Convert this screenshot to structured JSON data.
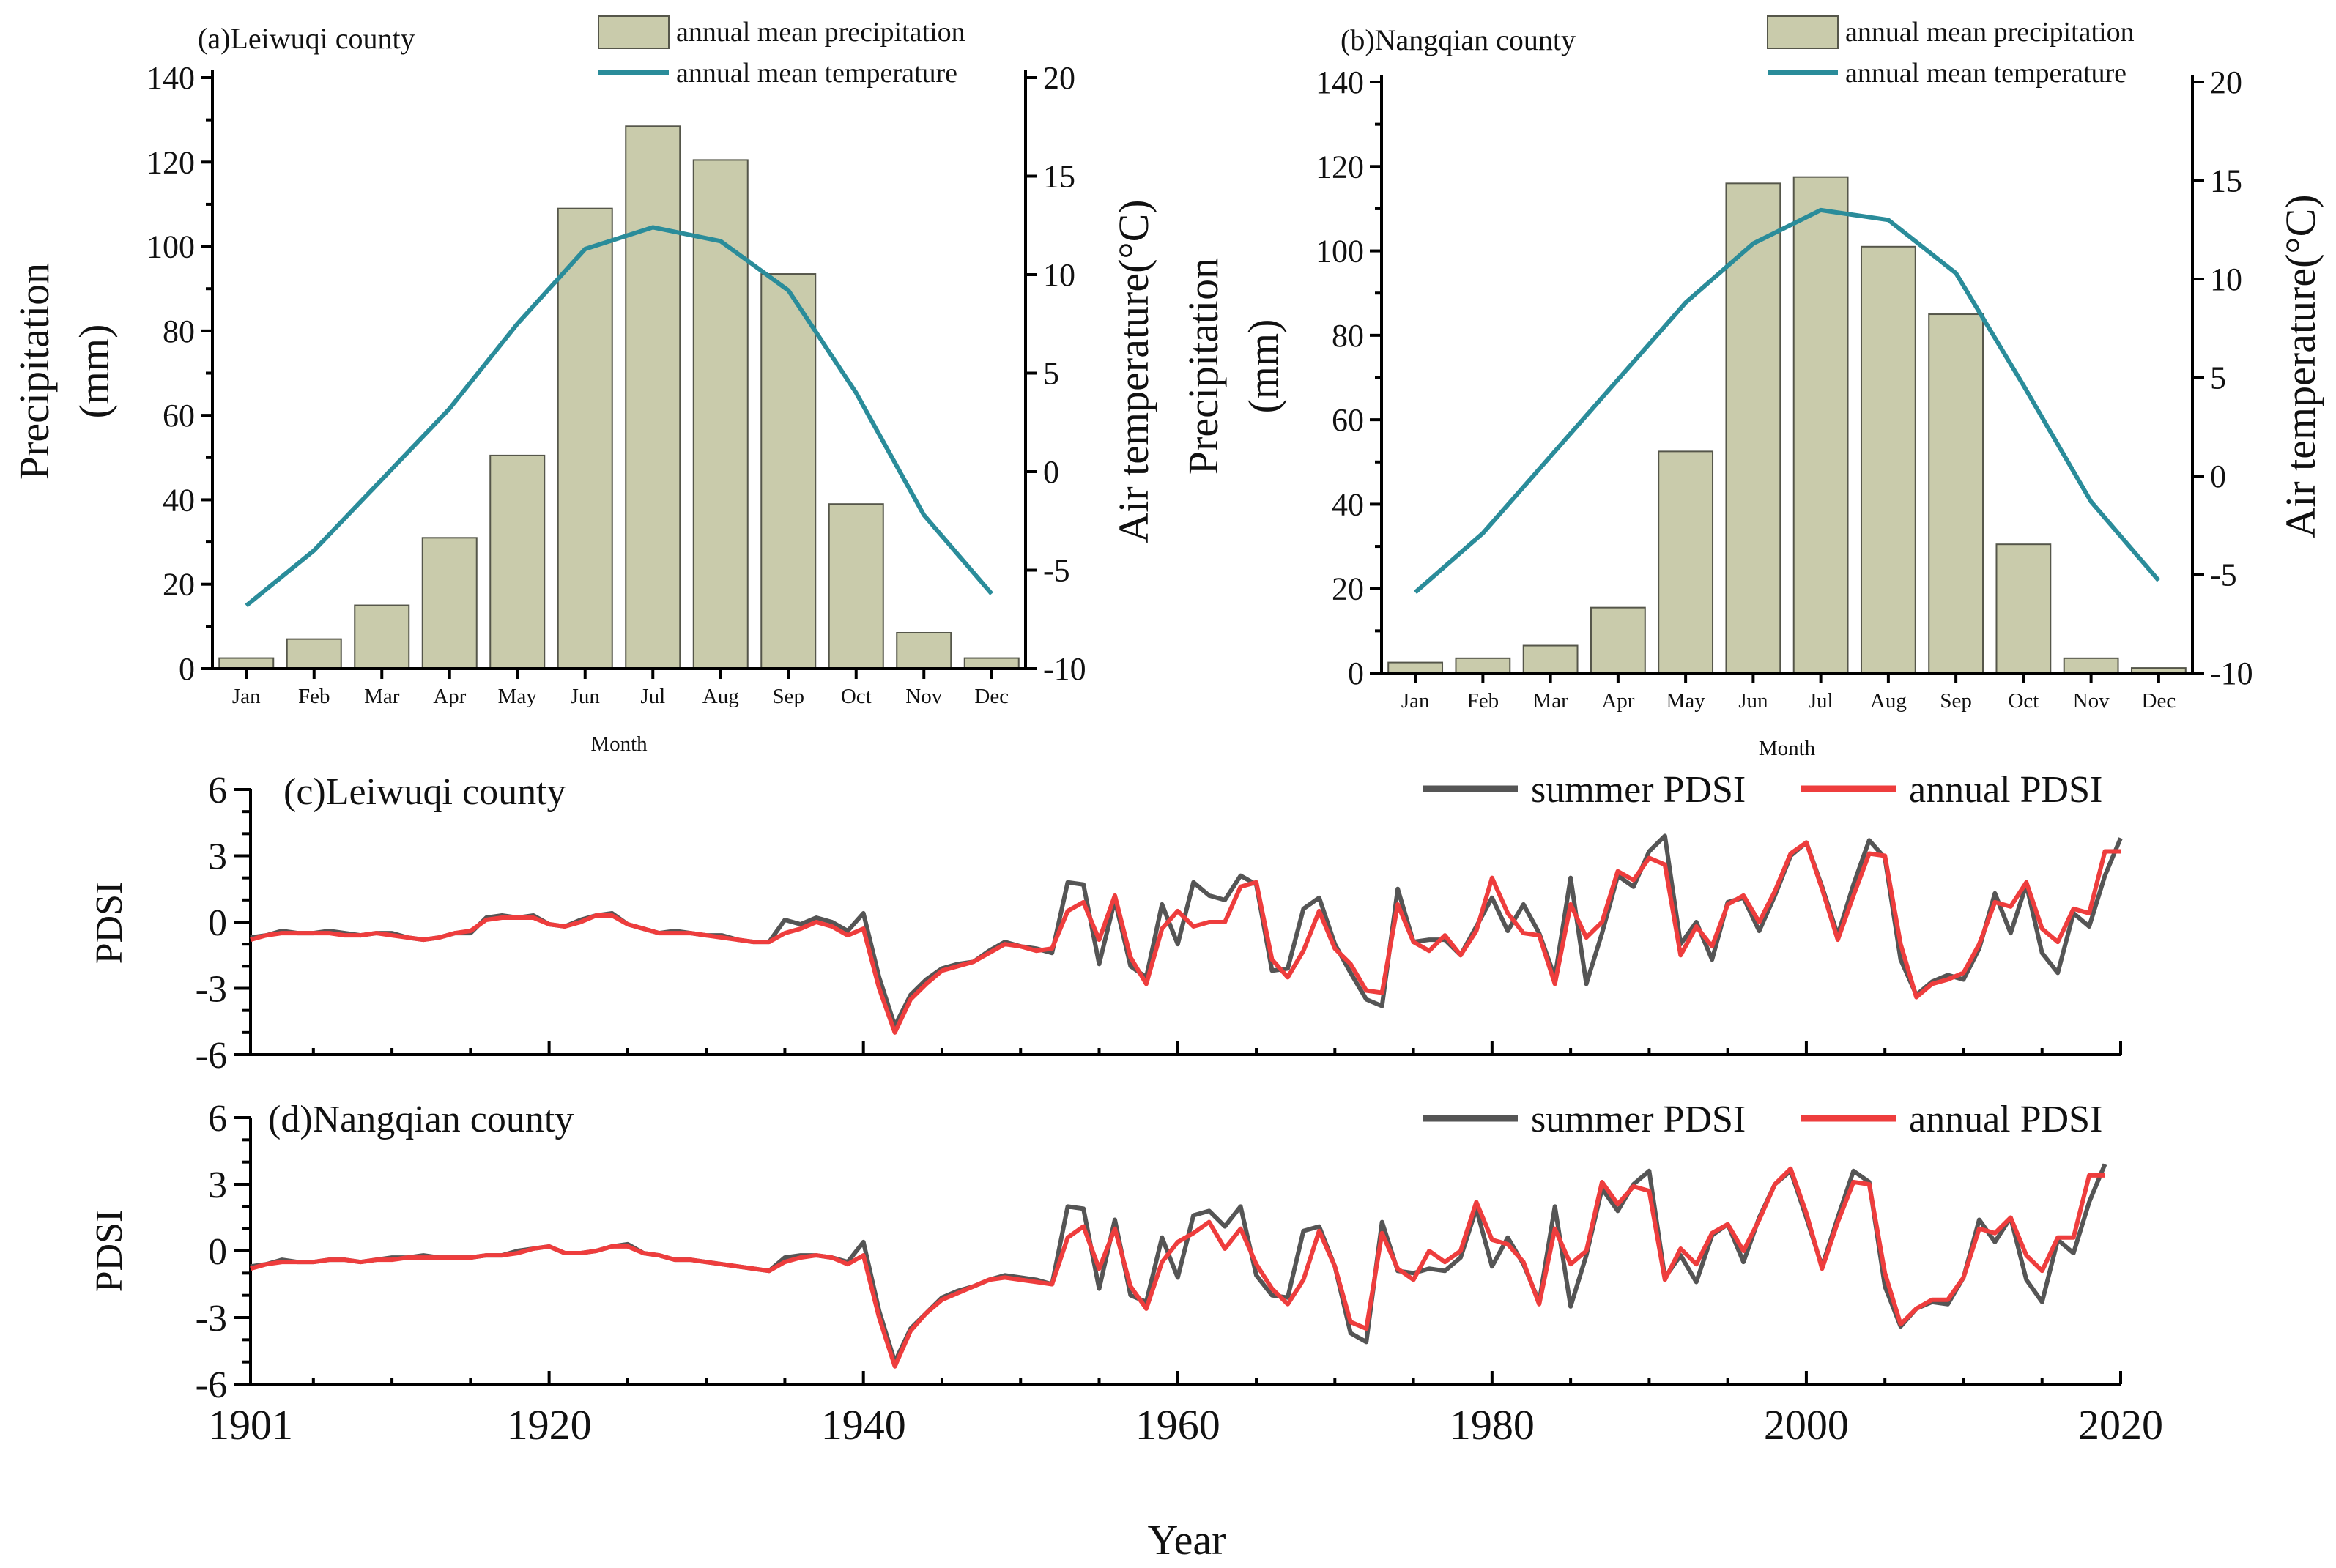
{
  "colors": {
    "bar_fill": "#c9cbab",
    "bar_stroke": "#55564a",
    "temp_line": "#2a8c9a",
    "summer_pdsi": "#555555",
    "annual_pdsi": "#ee3d3d"
  },
  "chart_data": [
    {
      "id": "a",
      "type": "bar+line",
      "title": "(a)Leiwuqi county",
      "xlabel": "Month",
      "ylabel": "Precipitation\n(mm)",
      "ylabel_lines": [
        "Precipitation",
        "(mm)"
      ],
      "y2label": "Air temperature(°C)",
      "categories": [
        "Jan",
        "Feb",
        "Mar",
        "Apr",
        "May",
        "Jun",
        "Jul",
        "Aug",
        "Sep",
        "Oct",
        "Nov",
        "Dec"
      ],
      "ylim": [
        0,
        140
      ],
      "yticks": [
        0,
        20,
        40,
        60,
        80,
        100,
        120,
        140
      ],
      "y2lim": [
        -10,
        20
      ],
      "y2ticks": [
        -10,
        -5,
        0,
        5,
        10,
        15,
        20
      ],
      "legend": [
        "annual mean precipitation",
        "annual mean temperature"
      ],
      "series": [
        {
          "name": "annual mean precipitation",
          "type": "bar",
          "axis": "left",
          "values": [
            2.5,
            7,
            15,
            31,
            50.5,
            109,
            128.5,
            120.5,
            93.5,
            39,
            8.5,
            2.5
          ]
        },
        {
          "name": "annual mean temperature",
          "type": "line",
          "axis": "right",
          "values": [
            -6.8,
            -4.0,
            -0.4,
            3.2,
            7.5,
            11.3,
            12.4,
            11.7,
            9.2,
            4.0,
            -2.2,
            -6.2
          ]
        }
      ]
    },
    {
      "id": "b",
      "type": "bar+line",
      "title": "(b)Nangqian county",
      "xlabel": "Month",
      "ylabel": "Precipitation\n(mm)",
      "ylabel_lines": [
        "Precipitation",
        "(mm)"
      ],
      "y2label": "Air temperature(°C)",
      "categories": [
        "Jan",
        "Feb",
        "Mar",
        "Apr",
        "May",
        "Jun",
        "Jul",
        "Aug",
        "Sep",
        "Oct",
        "Nov",
        "Dec"
      ],
      "ylim": [
        0,
        140
      ],
      "yticks": [
        0,
        20,
        40,
        60,
        80,
        100,
        120,
        140
      ],
      "y2lim": [
        -10,
        20
      ],
      "y2ticks": [
        -10,
        -5,
        0,
        5,
        10,
        15,
        20
      ],
      "legend": [
        "annual mean precipitation",
        "annual mean temperature"
      ],
      "series": [
        {
          "name": "annual mean precipitation",
          "type": "bar",
          "axis": "left",
          "values": [
            2.5,
            3.5,
            6.5,
            15.5,
            52.5,
            116,
            117.5,
            101,
            85,
            30.5,
            3.5,
            1.2
          ]
        },
        {
          "name": "annual mean temperature",
          "type": "line",
          "axis": "right",
          "values": [
            -5.9,
            -2.9,
            1.0,
            4.9,
            8.8,
            11.8,
            13.5,
            13.0,
            10.3,
            4.6,
            -1.3,
            -5.3
          ]
        }
      ]
    },
    {
      "id": "c",
      "type": "line",
      "title": "(c)Leiwuqi county",
      "ylabel": "PDSI",
      "xlabel": "Year",
      "xlim": [
        1901,
        2020
      ],
      "xticks": [
        1901,
        1920,
        1940,
        1960,
        1980,
        2000,
        2020
      ],
      "ylim": [
        -6,
        6
      ],
      "yticks": [
        -6,
        -3,
        0,
        3,
        6
      ],
      "legend": [
        "summer PDSI",
        "annual PDSI"
      ],
      "x_start": 1901,
      "series": [
        {
          "name": "summer PDSI",
          "values": [
            -0.7,
            -0.6,
            -0.4,
            -0.5,
            -0.5,
            -0.4,
            -0.5,
            -0.6,
            -0.5,
            -0.5,
            -0.7,
            -0.8,
            -0.7,
            -0.5,
            -0.5,
            0.2,
            0.3,
            0.2,
            0.3,
            -0.1,
            -0.2,
            0.1,
            0.3,
            0.4,
            -0.1,
            -0.3,
            -0.5,
            -0.4,
            -0.5,
            -0.6,
            -0.6,
            -0.8,
            -0.9,
            -0.9,
            0.1,
            -0.1,
            0.2,
            0.0,
            -0.4,
            0.4,
            -2.5,
            -4.7,
            -3.3,
            -2.6,
            -2.1,
            -1.9,
            -1.8,
            -1.3,
            -0.9,
            -1.1,
            -1.2,
            -1.4,
            1.8,
            1.7,
            -1.9,
            1.0,
            -2.0,
            -2.5,
            0.8,
            -1.0,
            1.8,
            1.2,
            1.0,
            2.1,
            1.7,
            -2.2,
            -2.1,
            0.6,
            1.1,
            -1.0,
            -2.3,
            -3.5,
            -3.8,
            1.5,
            -0.9,
            -0.8,
            -0.8,
            -1.5,
            -0.2,
            1.1,
            -0.4,
            0.8,
            -0.5,
            -2.5,
            2.0,
            -2.8,
            -0.5,
            2.1,
            1.6,
            3.2,
            3.9,
            -1.0,
            0.0,
            -1.7,
            0.9,
            1.1,
            -0.4,
            1.2,
            3.0,
            3.6,
            1.6,
            -0.6,
            1.7,
            3.7,
            2.9,
            -1.7,
            -3.3,
            -2.7,
            -2.4,
            -2.6,
            -1.2,
            1.3,
            -0.5,
            1.7,
            -1.4,
            -2.3,
            0.4,
            -0.2,
            2.1,
            3.8
          ]
        },
        {
          "name": "annual PDSI",
          "values": [
            -0.8,
            -0.6,
            -0.5,
            -0.5,
            -0.5,
            -0.5,
            -0.6,
            -0.6,
            -0.5,
            -0.6,
            -0.7,
            -0.8,
            -0.7,
            -0.5,
            -0.4,
            0.1,
            0.2,
            0.2,
            0.2,
            -0.1,
            -0.2,
            0.0,
            0.3,
            0.3,
            -0.1,
            -0.3,
            -0.5,
            -0.5,
            -0.5,
            -0.6,
            -0.7,
            -0.8,
            -0.9,
            -0.9,
            -0.5,
            -0.3,
            0.0,
            -0.2,
            -0.6,
            -0.3,
            -3.0,
            -5.0,
            -3.5,
            -2.8,
            -2.2,
            -2.0,
            -1.8,
            -1.4,
            -1.0,
            -1.1,
            -1.3,
            -1.2,
            0.5,
            0.9,
            -0.8,
            1.2,
            -1.6,
            -2.8,
            -0.3,
            0.5,
            -0.2,
            0.0,
            0.0,
            1.6,
            1.8,
            -1.7,
            -2.5,
            -1.3,
            0.5,
            -1.2,
            -1.9,
            -3.1,
            -3.2,
            0.8,
            -0.9,
            -1.3,
            -0.6,
            -1.5,
            -0.4,
            2.0,
            0.4,
            -0.5,
            -0.6,
            -2.8,
            0.8,
            -0.7,
            0.0,
            2.3,
            1.9,
            2.9,
            2.6,
            -1.5,
            -0.2,
            -1.1,
            0.8,
            1.2,
            0.0,
            1.4,
            3.1,
            3.6,
            1.5,
            -0.8,
            1.2,
            3.1,
            3.0,
            -1.0,
            -3.4,
            -2.8,
            -2.6,
            -2.3,
            -1.0,
            0.9,
            0.7,
            1.8,
            -0.3,
            -0.9,
            0.6,
            0.4,
            3.2,
            3.2
          ]
        }
      ]
    },
    {
      "id": "d",
      "type": "line",
      "title": "(d)Nangqian county",
      "ylabel": "PDSI",
      "xlabel": "Year",
      "xlim": [
        1901,
        2020
      ],
      "xticks": [
        1901,
        1920,
        1940,
        1960,
        1980,
        2000,
        2020
      ],
      "ylim": [
        -6,
        6
      ],
      "yticks": [
        -6,
        -3,
        0,
        3,
        6
      ],
      "legend": [
        "summer PDSI",
        "annual PDSI"
      ],
      "x_start": 1901,
      "series": [
        {
          "name": "summer PDSI",
          "values": [
            -0.7,
            -0.6,
            -0.4,
            -0.5,
            -0.5,
            -0.4,
            -0.4,
            -0.5,
            -0.4,
            -0.3,
            -0.3,
            -0.2,
            -0.3,
            -0.3,
            -0.3,
            -0.2,
            -0.2,
            0.0,
            0.1,
            0.2,
            -0.1,
            -0.1,
            0.0,
            0.2,
            0.3,
            -0.1,
            -0.2,
            -0.4,
            -0.4,
            -0.5,
            -0.6,
            -0.7,
            -0.8,
            -0.9,
            -0.3,
            -0.2,
            -0.2,
            -0.3,
            -0.5,
            0.4,
            -2.7,
            -5.0,
            -3.5,
            -2.8,
            -2.1,
            -1.8,
            -1.6,
            -1.3,
            -1.1,
            -1.2,
            -1.3,
            -1.5,
            2.0,
            1.9,
            -1.7,
            1.4,
            -2.0,
            -2.3,
            0.6,
            -1.2,
            1.6,
            1.8,
            1.1,
            2.0,
            -1.1,
            -2.0,
            -2.1,
            0.9,
            1.1,
            -0.7,
            -3.7,
            -4.1,
            1.3,
            -0.9,
            -1.0,
            -0.8,
            -0.9,
            -0.3,
            1.9,
            -0.7,
            0.6,
            -0.6,
            -2.3,
            2.0,
            -2.5,
            -0.2,
            2.8,
            1.8,
            3.0,
            3.6,
            -1.2,
            -0.2,
            -1.4,
            0.7,
            1.2,
            -0.5,
            1.5,
            3.0,
            3.6,
            1.5,
            -0.7,
            1.5,
            3.6,
            3.1,
            -1.6,
            -3.4,
            -2.6,
            -2.3,
            -2.4,
            -1.2,
            1.4,
            0.4,
            1.5,
            -1.3,
            -2.3,
            0.5,
            -0.1,
            2.2,
            3.9
          ]
        },
        {
          "name": "annual PDSI",
          "values": [
            -0.8,
            -0.6,
            -0.5,
            -0.5,
            -0.5,
            -0.4,
            -0.4,
            -0.5,
            -0.4,
            -0.4,
            -0.3,
            -0.3,
            -0.3,
            -0.3,
            -0.3,
            -0.2,
            -0.2,
            -0.1,
            0.1,
            0.2,
            -0.1,
            -0.1,
            0.0,
            0.2,
            0.2,
            -0.1,
            -0.2,
            -0.4,
            -0.4,
            -0.5,
            -0.6,
            -0.7,
            -0.8,
            -0.9,
            -0.5,
            -0.3,
            -0.2,
            -0.3,
            -0.6,
            -0.2,
            -3.0,
            -5.2,
            -3.6,
            -2.8,
            -2.2,
            -1.9,
            -1.6,
            -1.3,
            -1.2,
            -1.3,
            -1.4,
            -1.5,
            0.6,
            1.1,
            -0.8,
            1.0,
            -1.6,
            -2.6,
            -0.5,
            0.4,
            0.8,
            1.3,
            0.1,
            1.0,
            -0.6,
            -1.7,
            -2.4,
            -1.3,
            0.9,
            -0.7,
            -3.2,
            -3.5,
            0.8,
            -0.8,
            -1.3,
            0.0,
            -0.5,
            0.0,
            2.2,
            0.5,
            0.3,
            -0.5,
            -2.4,
            1.0,
            -0.6,
            0.0,
            3.1,
            2.1,
            2.9,
            2.7,
            -1.3,
            0.1,
            -0.6,
            0.8,
            1.2,
            0.0,
            1.4,
            3.0,
            3.7,
            1.7,
            -0.8,
            1.3,
            3.1,
            3.0,
            -1.0,
            -3.3,
            -2.6,
            -2.2,
            -2.2,
            -1.2,
            1.0,
            0.8,
            1.5,
            -0.2,
            -0.9,
            0.6,
            0.6,
            3.4,
            3.4
          ]
        }
      ]
    }
  ]
}
